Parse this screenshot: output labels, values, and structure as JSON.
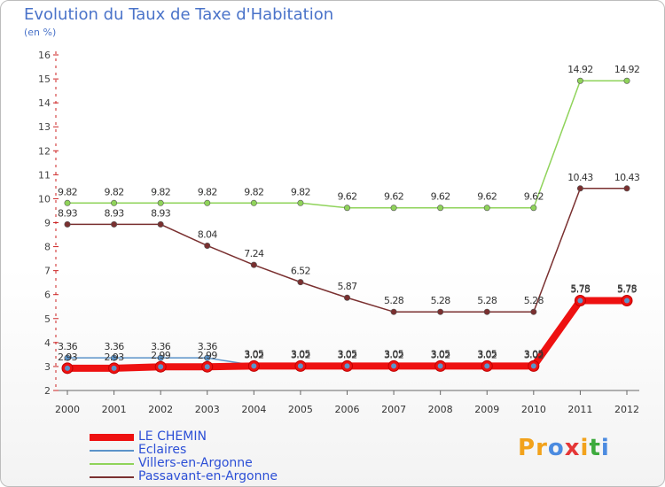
{
  "title": "Evolution du Taux de Taxe d'Habitation",
  "subtitle": "(en %)",
  "brand": {
    "text": "Proxiti",
    "letters": [
      {
        "ch": "P",
        "color": "#f2a21b"
      },
      {
        "ch": "r",
        "color": "#f2a21b"
      },
      {
        "ch": "o",
        "color": "#4b8be0"
      },
      {
        "ch": "x",
        "color": "#e53636"
      },
      {
        "ch": "i",
        "color": "#f2a21b"
      },
      {
        "ch": "t",
        "color": "#3daa3d"
      },
      {
        "ch": "i",
        "color": "#4b8be0"
      }
    ]
  },
  "chart_data": {
    "type": "line",
    "title": "Evolution du Taux de Taxe d'Habitation",
    "ylabel": "(en %)",
    "xlabel": "",
    "x": [
      "2000",
      "2001",
      "2002",
      "2003",
      "2004",
      "2005",
      "2006",
      "2007",
      "2008",
      "2009",
      "2010",
      "2011",
      "2012"
    ],
    "yticks": [
      "2",
      "3",
      "4",
      "5",
      "6",
      "7",
      "8",
      "9",
      "10",
      "11",
      "12",
      "13",
      "14",
      "15",
      "16"
    ],
    "ylim": [
      2,
      16
    ],
    "grid": false,
    "legend_position": "bottom-left",
    "series": [
      {
        "name": "LE CHEMIN",
        "color": "#ee1111",
        "values": [
          2.93,
          2.93,
          2.99,
          2.99,
          3.02,
          3.02,
          3.02,
          3.02,
          3.02,
          3.02,
          3.02,
          5.75,
          5.75
        ],
        "labels": [
          "2.93",
          "2.93",
          "2.99",
          "2.99",
          "3.02",
          "3.02",
          "3.02",
          "3.02",
          "3.02",
          "3.02",
          "3.02",
          "5.75",
          "5.75"
        ]
      },
      {
        "name": "Eclaires",
        "color": "#5b93c9",
        "values": [
          3.36,
          3.36,
          3.36,
          3.36,
          3.05,
          3.05,
          3.05,
          3.05,
          3.05,
          3.05,
          3.05,
          5.78,
          5.78
        ],
        "labels": [
          "3.36",
          "3.36",
          "3.36",
          "3.36",
          "3.05",
          "3.05",
          "3.05",
          "3.05",
          "3.05",
          "3.05",
          "3.05",
          "5.78",
          "5.78"
        ]
      },
      {
        "name": "Villers-en-Argonne",
        "color": "#8fd35a",
        "values": [
          9.82,
          9.82,
          9.82,
          9.82,
          9.82,
          9.82,
          9.62,
          9.62,
          9.62,
          9.62,
          9.62,
          14.92,
          14.92
        ],
        "labels": [
          "9.82",
          "9.82",
          "9.82",
          "9.82",
          "9.82",
          "9.82",
          "9.62",
          "9.62",
          "9.62",
          "9.62",
          "9.62",
          "14.92",
          "14.92"
        ]
      },
      {
        "name": "Passavant-en-Argonne",
        "color": "#7a3030",
        "values": [
          8.93,
          8.93,
          8.93,
          8.04,
          7.24,
          6.52,
          5.87,
          5.28,
          5.28,
          5.28,
          5.28,
          10.43,
          10.43
        ],
        "labels": [
          "8.93",
          "8.93",
          "8.93",
          "8.04",
          "7.24",
          "6.52",
          "5.87",
          "5.28",
          "5.28",
          "5.28",
          "5.28",
          "10.43",
          "10.43"
        ]
      }
    ]
  }
}
